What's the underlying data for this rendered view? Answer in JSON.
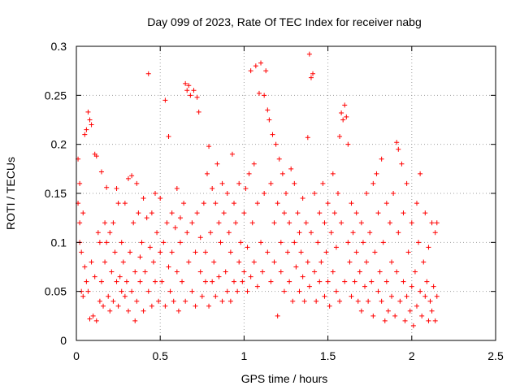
{
  "chart_data": {
    "type": "scatter",
    "title": "Day 099 of 2023, Rate Of TEC Index for receiver nabg",
    "xlabel": "GPS time / hours",
    "ylabel": "ROTI / TECUs",
    "xlim": [
      0,
      2.5
    ],
    "ylim": [
      0,
      0.3
    ],
    "xticks": [
      "0",
      "0.5",
      "1",
      "1.5",
      "2",
      "2.5"
    ],
    "yticks": [
      "0",
      "0.05",
      "0.1",
      "0.15",
      "0.2",
      "0.25",
      "0.3"
    ],
    "grid": true,
    "legend": "none",
    "marker": "plus",
    "series": [
      {
        "color": "#ff0000",
        "points": [
          [
            0.01,
            0.185
          ],
          [
            0.01,
            0.14
          ],
          [
            0.02,
            0.12
          ],
          [
            0.02,
            0.1
          ],
          [
            0.02,
            0.16
          ],
          [
            0.03,
            0.05
          ],
          [
            0.03,
            0.09
          ],
          [
            0.04,
            0.045
          ],
          [
            0.04,
            0.13
          ],
          [
            0.05,
            0.21
          ],
          [
            0.05,
            0.075
          ],
          [
            0.06,
            0.215
          ],
          [
            0.06,
            0.06
          ],
          [
            0.07,
            0.233
          ],
          [
            0.07,
            0.05
          ],
          [
            0.08,
            0.225
          ],
          [
            0.08,
            0.022
          ],
          [
            0.09,
            0.22
          ],
          [
            0.09,
            0.08
          ],
          [
            0.1,
            0.025
          ],
          [
            0.11,
            0.19
          ],
          [
            0.11,
            0.065
          ],
          [
            0.12,
            0.188
          ],
          [
            0.12,
            0.02
          ],
          [
            0.13,
            0.11
          ],
          [
            0.14,
            0.04
          ],
          [
            0.14,
            0.1
          ],
          [
            0.15,
            0.172
          ],
          [
            0.15,
            0.06
          ],
          [
            0.16,
            0.035
          ],
          [
            0.17,
            0.12
          ],
          [
            0.17,
            0.08
          ],
          [
            0.18,
            0.156
          ],
          [
            0.18,
            0.1
          ],
          [
            0.19,
            0.045
          ],
          [
            0.2,
            0.03
          ],
          [
            0.2,
            0.11
          ],
          [
            0.21,
            0.07
          ],
          [
            0.22,
            0.04
          ],
          [
            0.22,
            0.12
          ],
          [
            0.23,
            0.09
          ],
          [
            0.24,
            0.155
          ],
          [
            0.24,
            0.06
          ],
          [
            0.25,
            0.14
          ],
          [
            0.25,
            0.035
          ],
          [
            0.26,
            0.065
          ],
          [
            0.27,
            0.1
          ],
          [
            0.27,
            0.05
          ],
          [
            0.28,
            0.08
          ],
          [
            0.29,
            0.14
          ],
          [
            0.29,
            0.045
          ],
          [
            0.3,
            0.06
          ],
          [
            0.31,
            0.165
          ],
          [
            0.31,
            0.03
          ],
          [
            0.32,
            0.09
          ],
          [
            0.33,
            0.168
          ],
          [
            0.33,
            0.05
          ],
          [
            0.34,
            0.12
          ],
          [
            0.35,
            0.02
          ],
          [
            0.35,
            0.07
          ],
          [
            0.36,
            0.16
          ],
          [
            0.36,
            0.04
          ],
          [
            0.37,
            0.13
          ],
          [
            0.38,
            0.085
          ],
          [
            0.38,
            0.06
          ],
          [
            0.39,
            0.1
          ],
          [
            0.4,
            0.03
          ],
          [
            0.4,
            0.145
          ],
          [
            0.41,
            0.07
          ],
          [
            0.42,
            0.125
          ],
          [
            0.43,
            0.272
          ],
          [
            0.43,
            0.05
          ],
          [
            0.44,
            0.095
          ],
          [
            0.45,
            0.13
          ],
          [
            0.45,
            0.035
          ],
          [
            0.46,
            0.08
          ],
          [
            0.47,
            0.15
          ],
          [
            0.47,
            0.06
          ],
          [
            0.48,
            0.11
          ],
          [
            0.49,
            0.04
          ],
          [
            0.5,
            0.09
          ],
          [
            0.5,
            0.145
          ],
          [
            0.51,
            0.06
          ],
          [
            0.52,
            0.1
          ],
          [
            0.53,
            0.245
          ],
          [
            0.53,
            0.035
          ],
          [
            0.54,
            0.12
          ],
          [
            0.55,
            0.208
          ],
          [
            0.55,
            0.075
          ],
          [
            0.56,
            0.05
          ],
          [
            0.57,
            0.13
          ],
          [
            0.57,
            0.09
          ],
          [
            0.58,
            0.04
          ],
          [
            0.59,
            0.115
          ],
          [
            0.6,
            0.155
          ],
          [
            0.6,
            0.07
          ],
          [
            0.61,
            0.03
          ],
          [
            0.62,
            0.125
          ],
          [
            0.62,
            0.1
          ],
          [
            0.63,
            0.06
          ],
          [
            0.64,
            0.14
          ],
          [
            0.65,
            0.262
          ],
          [
            0.65,
            0.04
          ],
          [
            0.66,
            0.255
          ],
          [
            0.66,
            0.11
          ],
          [
            0.67,
            0.26
          ],
          [
            0.67,
            0.08
          ],
          [
            0.68,
            0.25
          ],
          [
            0.69,
            0.12
          ],
          [
            0.69,
            0.05
          ],
          [
            0.7,
            0.255
          ],
          [
            0.71,
            0.09
          ],
          [
            0.71,
            0.035
          ],
          [
            0.72,
            0.248
          ],
          [
            0.72,
            0.13
          ],
          [
            0.73,
            0.233
          ],
          [
            0.74,
            0.07
          ],
          [
            0.74,
            0.105
          ],
          [
            0.75,
            0.045
          ],
          [
            0.76,
            0.14
          ],
          [
            0.77,
            0.06
          ],
          [
            0.77,
            0.09
          ],
          [
            0.78,
            0.17
          ],
          [
            0.79,
            0.035
          ],
          [
            0.79,
            0.198
          ],
          [
            0.8,
            0.11
          ],
          [
            0.81,
            0.155
          ],
          [
            0.81,
            0.06
          ],
          [
            0.82,
            0.08
          ],
          [
            0.83,
            0.14
          ],
          [
            0.83,
            0.045
          ],
          [
            0.84,
            0.18
          ],
          [
            0.85,
            0.12
          ],
          [
            0.85,
            0.065
          ],
          [
            0.86,
            0.1
          ],
          [
            0.87,
            0.04
          ],
          [
            0.87,
            0.16
          ],
          [
            0.88,
            0.13
          ],
          [
            0.89,
            0.07
          ],
          [
            0.9,
            0.05
          ],
          [
            0.9,
            0.15
          ],
          [
            0.91,
            0.11
          ],
          [
            0.92,
            0.04
          ],
          [
            0.92,
            0.09
          ],
          [
            0.93,
            0.19
          ],
          [
            0.94,
            0.06
          ],
          [
            0.94,
            0.14
          ],
          [
            0.95,
            0.12
          ],
          [
            0.96,
            0.05
          ],
          [
            0.97,
            0.16
          ],
          [
            0.97,
            0.08
          ],
          [
            0.98,
            0.1
          ],
          [
            0.99,
            0.06
          ],
          [
            1.0,
            0.13
          ],
          [
            1.0,
            0.07
          ],
          [
            1.01,
            0.155
          ],
          [
            1.02,
            0.05
          ],
          [
            1.02,
            0.095
          ],
          [
            1.03,
            0.17
          ],
          [
            1.04,
            0.065
          ],
          [
            1.04,
            0.275
          ],
          [
            1.05,
            0.12
          ],
          [
            1.06,
            0.08
          ],
          [
            1.06,
            0.18
          ],
          [
            1.07,
            0.28
          ],
          [
            1.08,
            0.055
          ],
          [
            1.08,
            0.14
          ],
          [
            1.09,
            0.252
          ],
          [
            1.1,
            0.1
          ],
          [
            1.1,
            0.283
          ],
          [
            1.11,
            0.07
          ],
          [
            1.12,
            0.25
          ],
          [
            1.12,
            0.15
          ],
          [
            1.13,
            0.275
          ],
          [
            1.14,
            0.235
          ],
          [
            1.14,
            0.09
          ],
          [
            1.15,
            0.225
          ],
          [
            1.16,
            0.06
          ],
          [
            1.16,
            0.16
          ],
          [
            1.17,
            0.21
          ],
          [
            1.18,
            0.12
          ],
          [
            1.18,
            0.08
          ],
          [
            1.19,
            0.2
          ],
          [
            1.2,
            0.025
          ],
          [
            1.2,
            0.14
          ],
          [
            1.21,
            0.185
          ],
          [
            1.22,
            0.07
          ],
          [
            1.22,
            0.1
          ],
          [
            1.23,
            0.17
          ],
          [
            1.24,
            0.05
          ],
          [
            1.24,
            0.13
          ],
          [
            1.25,
            0.15
          ],
          [
            1.26,
            0.09
          ],
          [
            1.27,
            0.06
          ],
          [
            1.27,
            0.12
          ],
          [
            1.28,
            0.175
          ],
          [
            1.29,
            0.04
          ],
          [
            1.3,
            0.1
          ],
          [
            1.3,
            0.16
          ],
          [
            1.31,
            0.075
          ],
          [
            1.32,
            0.13
          ],
          [
            1.33,
            0.05
          ],
          [
            1.33,
            0.11
          ],
          [
            1.34,
            0.09
          ],
          [
            1.35,
            0.145
          ],
          [
            1.35,
            0.065
          ],
          [
            1.36,
            0.04
          ],
          [
            1.37,
            0.12
          ],
          [
            1.38,
            0.207
          ],
          [
            1.38,
            0.08
          ],
          [
            1.39,
            0.292
          ],
          [
            1.39,
            0.055
          ],
          [
            1.4,
            0.268
          ],
          [
            1.4,
            0.11
          ],
          [
            1.41,
            0.272
          ],
          [
            1.42,
            0.07
          ],
          [
            1.42,
            0.15
          ],
          [
            1.43,
            0.04
          ],
          [
            1.44,
            0.1
          ],
          [
            1.45,
            0.13
          ],
          [
            1.45,
            0.06
          ],
          [
            1.46,
            0.08
          ],
          [
            1.47,
            0.16
          ],
          [
            1.48,
            0.045
          ],
          [
            1.48,
            0.12
          ],
          [
            1.49,
            0.09
          ],
          [
            1.5,
            0.14
          ],
          [
            1.5,
            0.06
          ],
          [
            1.51,
            0.035
          ],
          [
            1.52,
            0.11
          ],
          [
            1.53,
            0.17
          ],
          [
            1.53,
            0.07
          ],
          [
            1.54,
            0.13
          ],
          [
            1.55,
            0.05
          ],
          [
            1.55,
            0.095
          ],
          [
            1.56,
            0.15
          ],
          [
            1.57,
            0.208
          ],
          [
            1.57,
            0.04
          ],
          [
            1.58,
            0.232
          ],
          [
            1.58,
            0.12
          ],
          [
            1.59,
            0.225
          ],
          [
            1.6,
            0.24
          ],
          [
            1.6,
            0.06
          ],
          [
            1.61,
            0.228
          ],
          [
            1.62,
            0.2
          ],
          [
            1.62,
            0.1
          ],
          [
            1.63,
            0.08
          ],
          [
            1.64,
            0.14
          ],
          [
            1.64,
            0.045
          ],
          [
            1.65,
            0.11
          ],
          [
            1.66,
            0.06
          ],
          [
            1.67,
            0.13
          ],
          [
            1.67,
            0.09
          ],
          [
            1.68,
            0.04
          ],
          [
            1.69,
            0.07
          ],
          [
            1.7,
            0.12
          ],
          [
            1.7,
            0.03
          ],
          [
            1.71,
            0.1
          ],
          [
            1.72,
            0.055
          ],
          [
            1.73,
            0.15
          ],
          [
            1.73,
            0.08
          ],
          [
            1.74,
            0.04
          ],
          [
            1.75,
            0.11
          ],
          [
            1.76,
            0.06
          ],
          [
            1.77,
            0.16
          ],
          [
            1.77,
            0.025
          ],
          [
            1.78,
            0.09
          ],
          [
            1.79,
            0.17
          ],
          [
            1.8,
            0.05
          ],
          [
            1.8,
            0.13
          ],
          [
            1.81,
            0.07
          ],
          [
            1.82,
            0.185
          ],
          [
            1.82,
            0.04
          ],
          [
            1.83,
            0.1
          ],
          [
            1.84,
            0.02
          ],
          [
            1.85,
            0.14
          ],
          [
            1.85,
            0.06
          ],
          [
            1.86,
            0.03
          ],
          [
            1.87,
            0.12
          ],
          [
            1.88,
            0.08
          ],
          [
            1.88,
            0.045
          ],
          [
            1.89,
            0.15
          ],
          [
            1.9,
            0.025
          ],
          [
            1.91,
            0.202
          ],
          [
            1.91,
            0.07
          ],
          [
            1.92,
            0.195
          ],
          [
            1.92,
            0.11
          ],
          [
            1.93,
            0.04
          ],
          [
            1.94,
            0.18
          ],
          [
            1.95,
            0.06
          ],
          [
            1.95,
            0.13
          ],
          [
            1.96,
            0.02
          ],
          [
            1.97,
            0.16
          ],
          [
            1.97,
            0.045
          ],
          [
            1.98,
            0.09
          ],
          [
            1.99,
            0.03
          ],
          [
            2.0,
            0.12
          ],
          [
            2.0,
            0.055
          ],
          [
            2.01,
            0.015
          ],
          [
            2.02,
            0.07
          ],
          [
            2.03,
            0.14
          ],
          [
            2.03,
            0.035
          ],
          [
            2.04,
            0.1
          ],
          [
            2.05,
            0.05
          ],
          [
            2.05,
            0.17
          ],
          [
            2.06,
            0.025
          ],
          [
            2.07,
            0.08
          ],
          [
            2.08,
            0.045
          ],
          [
            2.08,
            0.13
          ],
          [
            2.09,
            0.06
          ],
          [
            2.1,
            0.02
          ],
          [
            2.1,
            0.095
          ],
          [
            2.11,
            0.04
          ],
          [
            2.12,
            0.12
          ],
          [
            2.12,
            0.03
          ],
          [
            2.13,
            0.055
          ],
          [
            2.14,
            0.02
          ],
          [
            2.14,
            0.11
          ],
          [
            2.15,
            0.045
          ],
          [
            2.15,
            0.12
          ]
        ]
      }
    ]
  }
}
